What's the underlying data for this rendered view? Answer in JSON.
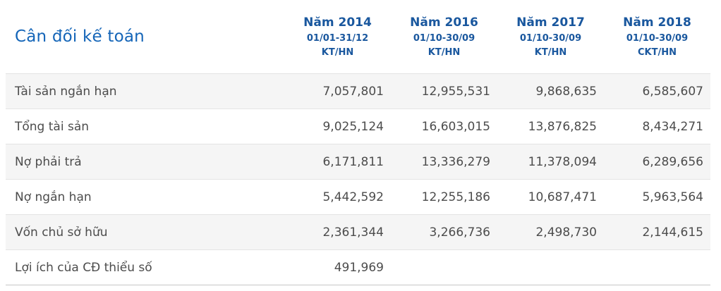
{
  "page": {
    "title": "Cân đối kế toán"
  },
  "colors": {
    "title_blue": "#1465b8",
    "header_blue": "#19579e",
    "row_text_gray": "#4c4c4c",
    "stripe_bg": "#f5f5f5",
    "row_border": "#e4e4e4",
    "bottom_border": "#c6c6c6"
  },
  "table": {
    "columns": [
      {
        "year": "Năm 2014",
        "period": "01/01-31/12",
        "basis": "KT/HN"
      },
      {
        "year": "Năm 2016",
        "period": "01/10-30/09",
        "basis": "KT/HN"
      },
      {
        "year": "Năm 2017",
        "period": "01/10-30/09",
        "basis": "KT/HN"
      },
      {
        "year": "Năm 2018",
        "period": "01/10-30/09",
        "basis": "CKT/HN"
      }
    ],
    "rows": [
      {
        "label": "Tài sản ngắn hạn",
        "values": [
          "7,057,801",
          "12,955,531",
          "9,868,635",
          "6,585,607"
        ]
      },
      {
        "label": "Tổng tài sản",
        "values": [
          "9,025,124",
          "16,603,015",
          "13,876,825",
          "8,434,271"
        ]
      },
      {
        "label": "Nợ phải trả",
        "values": [
          "6,171,811",
          "13,336,279",
          "11,378,094",
          "6,289,656"
        ]
      },
      {
        "label": "Nợ ngắn hạn",
        "values": [
          "5,442,592",
          "12,255,186",
          "10,687,471",
          "5,963,564"
        ]
      },
      {
        "label": "Vốn chủ sở hữu",
        "values": [
          "2,361,344",
          "3,266,736",
          "2,498,730",
          "2,144,615"
        ]
      },
      {
        "label": "Lợi ích của CĐ thiểu số",
        "values": [
          "491,969",
          "",
          "",
          ""
        ]
      }
    ]
  }
}
